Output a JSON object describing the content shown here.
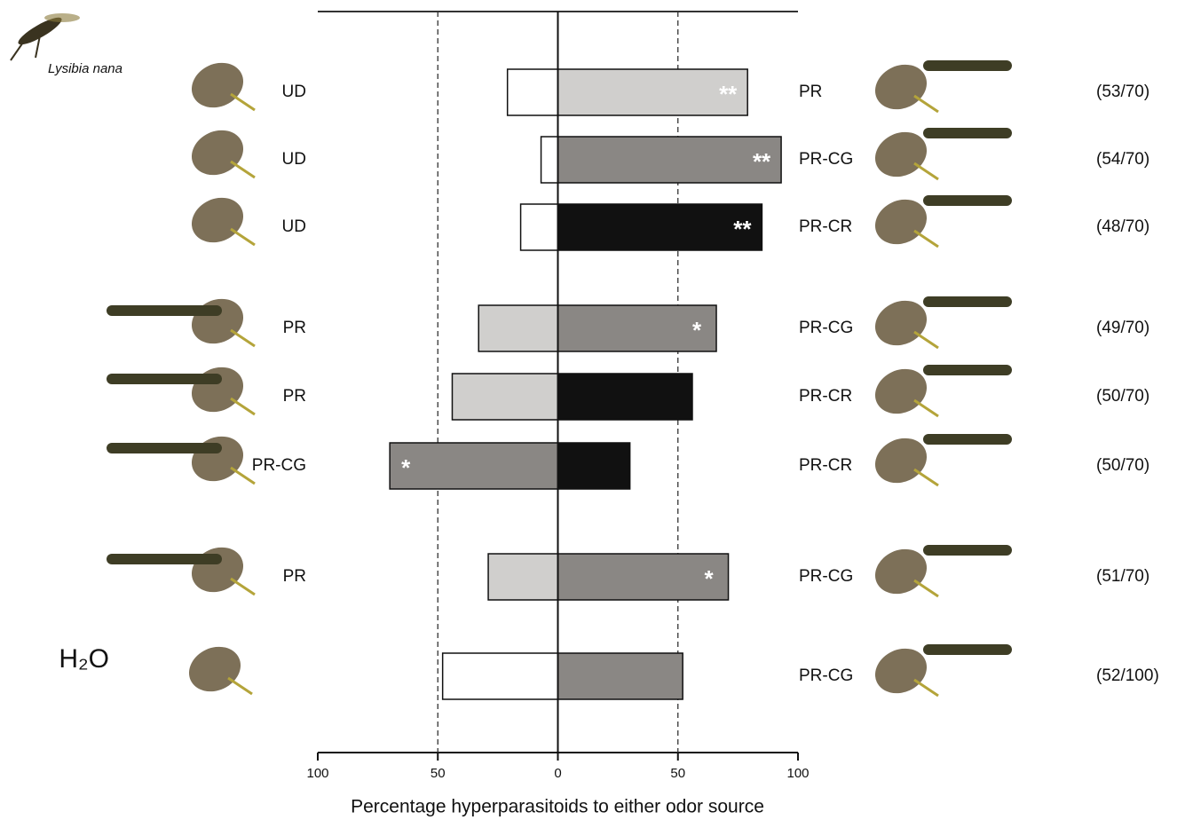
{
  "chart_data": {
    "type": "diverging_bar",
    "species": "Lysibia nana",
    "xlabel": "Percentage hyperparasitoids to either odor source",
    "xlim": [
      -100,
      100
    ],
    "xticks": [
      {
        "value": -100,
        "label": "100"
      },
      {
        "value": -50,
        "label": "50"
      },
      0,
      50,
      100
    ],
    "reference_lines": [
      -50,
      50
    ],
    "categories": [
      "UD",
      "UD",
      "UD",
      "PR",
      "PR",
      "PR-CG",
      "PR",
      "H₂O"
    ],
    "right_labels": [
      "PR",
      "PR-CG",
      "PR-CR",
      "PR-CG",
      "PR-CR",
      "PR-CR",
      "PR-CG",
      "PR-CG"
    ],
    "counts": [
      "(53/70)",
      "(54/70)",
      "(48/70)",
      "(49/70)",
      "(50/70)",
      "(50/70)",
      "(51/70)",
      "(52/100)"
    ],
    "series": [
      {
        "values": [
          -21,
          -7,
          -15.5,
          -33,
          -44,
          -70,
          -29,
          -48
        ],
        "colors": [
          "#ffffff",
          "#ffffff",
          "#ffffff",
          "#d0cfcd",
          "#d0cfcd",
          "#8a8784",
          "#d0cfcd",
          "#ffffff"
        ],
        "annotations": [
          null,
          null,
          null,
          null,
          null,
          "*",
          null,
          null
        ]
      },
      {
        "values": [
          79,
          93,
          85,
          66,
          56,
          30,
          71,
          52
        ],
        "colors": [
          "#d0cfcd",
          "#8a8784",
          "#111111",
          "#8a8784",
          "#111111",
          "#111111",
          "#8a8784",
          "#8a8784"
        ],
        "annotations": [
          "**",
          "**",
          "**",
          "*",
          null,
          null,
          "*",
          null
        ]
      }
    ]
  }
}
